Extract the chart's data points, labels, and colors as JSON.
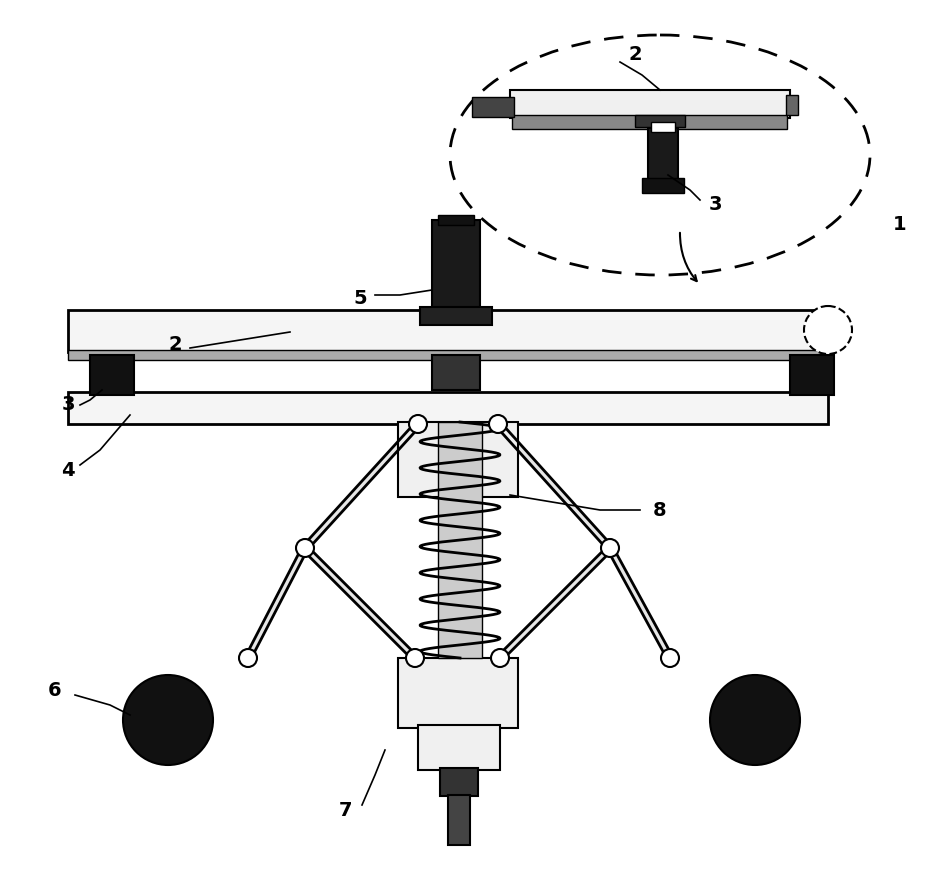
{
  "background_color": "#ffffff",
  "label_fontsize": 13
}
